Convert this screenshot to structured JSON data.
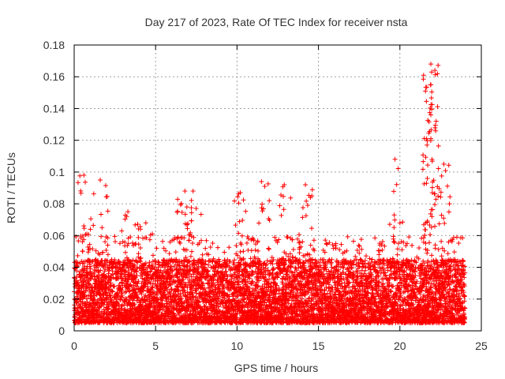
{
  "chart_data": {
    "type": "scatter",
    "title": "Day 217 of 2023, Rate Of TEC Index for receiver nsta",
    "xlabel": "GPS time / hours",
    "ylabel": "ROTI / TECUs",
    "xlim": [
      0,
      25
    ],
    "ylim": [
      0,
      0.18
    ],
    "xticks": [
      "0",
      "5",
      "10",
      "15",
      "20",
      "25"
    ],
    "yticks": [
      "0",
      "0.02",
      "0.04",
      "0.06",
      "0.08",
      "0.1",
      "0.12",
      "0.14",
      "0.16",
      "0.18"
    ],
    "grid": true,
    "marker": "plus",
    "color": "#ff0000",
    "series": [
      {
        "name": "ROTI",
        "x_range": [
          0,
          24
        ],
        "typical_range": [
          0.005,
          0.045
        ],
        "notable_points": [
          {
            "x": 0.6,
            "y": 0.098
          },
          {
            "x": 1.6,
            "y": 0.095
          },
          {
            "x": 3.3,
            "y": 0.075
          },
          {
            "x": 4.4,
            "y": 0.068
          },
          {
            "x": 6.8,
            "y": 0.088
          },
          {
            "x": 7.3,
            "y": 0.088
          },
          {
            "x": 10.2,
            "y": 0.087
          },
          {
            "x": 11.5,
            "y": 0.094
          },
          {
            "x": 12.9,
            "y": 0.092
          },
          {
            "x": 14.2,
            "y": 0.092
          },
          {
            "x": 19.7,
            "y": 0.108
          },
          {
            "x": 21.9,
            "y": 0.168
          },
          {
            "x": 21.95,
            "y": 0.163
          },
          {
            "x": 21.9,
            "y": 0.155
          },
          {
            "x": 21.9,
            "y": 0.136
          },
          {
            "x": 21.9,
            "y": 0.121
          },
          {
            "x": 22.7,
            "y": 0.105
          }
        ]
      }
    ]
  }
}
